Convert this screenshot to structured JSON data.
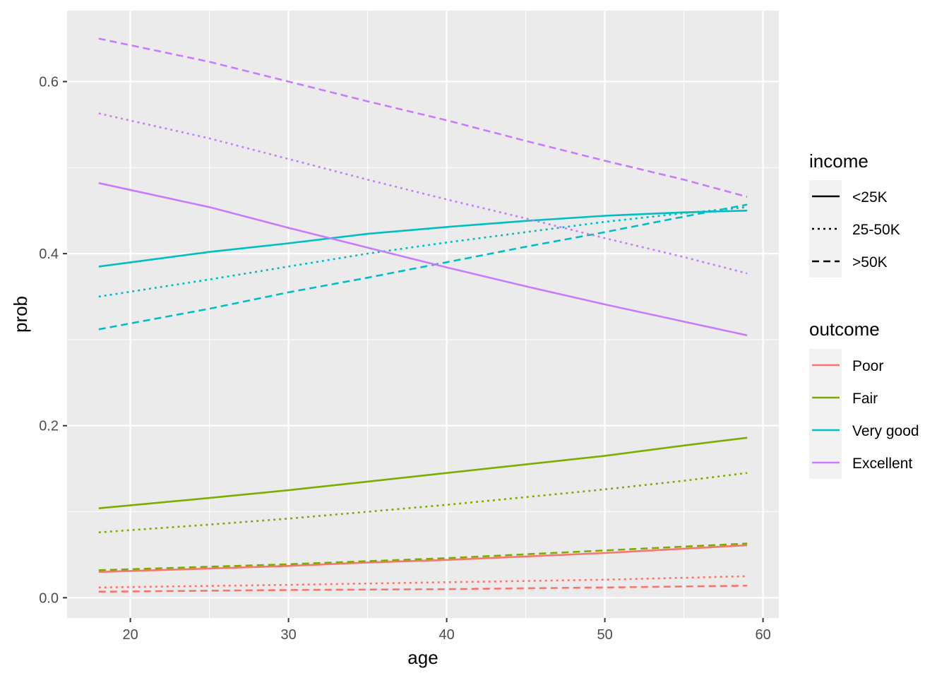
{
  "chart_data": {
    "type": "line",
    "xlabel": "age",
    "ylabel": "prob",
    "xlim": [
      16,
      61
    ],
    "ylim": [
      -0.0235,
      0.6825
    ],
    "x_ticks": [
      20,
      30,
      40,
      50,
      60
    ],
    "y_ticks": [
      0.0,
      0.2,
      0.4,
      0.6
    ],
    "x_tick_labels": [
      "20",
      "30",
      "40",
      "50",
      "60"
    ],
    "y_tick_labels": [
      "0.0",
      "0.2",
      "0.4",
      "0.6"
    ],
    "grid": true,
    "legend_placement": "right",
    "legends": {
      "income": {
        "title": "income",
        "entries": [
          {
            "label": "<25K",
            "linetype": "solid"
          },
          {
            "label": "25-50K",
            "linetype": "dotted"
          },
          {
            "label": ">50K",
            "linetype": "dashed"
          }
        ]
      },
      "outcome": {
        "title": "outcome",
        "entries": [
          {
            "label": "Poor",
            "color": "#F8766D"
          },
          {
            "label": "Fair",
            "color": "#7CAE00"
          },
          {
            "label": "Very good",
            "color": "#00BFC4"
          },
          {
            "label": "Excellent",
            "color": "#C77CFF"
          }
        ]
      }
    },
    "series": [
      {
        "outcome": "Poor",
        "income": "<25K",
        "color": "#F8766D",
        "linetype": "solid",
        "x": [
          18,
          25,
          30,
          35,
          40,
          45,
          50,
          55,
          59
        ],
        "y": [
          0.03,
          0.034,
          0.037,
          0.041,
          0.044,
          0.048,
          0.052,
          0.057,
          0.061
        ]
      },
      {
        "outcome": "Poor",
        "income": "25-50K",
        "color": "#F8766D",
        "linetype": "dotted",
        "x": [
          18,
          30,
          40,
          50,
          59
        ],
        "y": [
          0.012,
          0.015,
          0.018,
          0.021,
          0.025
        ]
      },
      {
        "outcome": "Poor",
        "income": ">50K",
        "color": "#F8766D",
        "linetype": "dashed",
        "x": [
          18,
          30,
          40,
          50,
          59
        ],
        "y": [
          0.007,
          0.009,
          0.01,
          0.012,
          0.014
        ]
      },
      {
        "outcome": "Fair",
        "income": "<25K",
        "color": "#7CAE00",
        "linetype": "solid",
        "x": [
          18,
          25,
          30,
          35,
          40,
          45,
          50,
          55,
          59
        ],
        "y": [
          0.104,
          0.116,
          0.125,
          0.135,
          0.145,
          0.155,
          0.165,
          0.177,
          0.186
        ]
      },
      {
        "outcome": "Fair",
        "income": "25-50K",
        "color": "#7CAE00",
        "linetype": "dotted",
        "x": [
          18,
          25,
          30,
          35,
          40,
          45,
          50,
          55,
          59
        ],
        "y": [
          0.076,
          0.085,
          0.092,
          0.1,
          0.108,
          0.117,
          0.126,
          0.136,
          0.145
        ]
      },
      {
        "outcome": "Fair",
        "income": ">50K",
        "color": "#7CAE00",
        "linetype": "dashed",
        "x": [
          18,
          30,
          40,
          50,
          59
        ],
        "y": [
          0.032,
          0.039,
          0.046,
          0.055,
          0.063
        ]
      },
      {
        "outcome": "Very good",
        "income": "<25K",
        "color": "#00BFC4",
        "linetype": "solid",
        "x": [
          18,
          25,
          30,
          35,
          40,
          45,
          50,
          55,
          59
        ],
        "y": [
          0.385,
          0.402,
          0.412,
          0.423,
          0.431,
          0.438,
          0.444,
          0.448,
          0.45
        ]
      },
      {
        "outcome": "Very good",
        "income": "25-50K",
        "color": "#00BFC4",
        "linetype": "dotted",
        "x": [
          18,
          25,
          30,
          35,
          40,
          45,
          50,
          55,
          59
        ],
        "y": [
          0.35,
          0.37,
          0.385,
          0.4,
          0.413,
          0.425,
          0.437,
          0.447,
          0.454
        ]
      },
      {
        "outcome": "Very good",
        "income": ">50K",
        "color": "#00BFC4",
        "linetype": "dashed",
        "x": [
          18,
          25,
          30,
          35,
          40,
          45,
          50,
          55,
          59
        ],
        "y": [
          0.312,
          0.336,
          0.355,
          0.372,
          0.39,
          0.408,
          0.425,
          0.443,
          0.457
        ]
      },
      {
        "outcome": "Excellent",
        "income": "<25K",
        "color": "#C77CFF",
        "linetype": "solid",
        "x": [
          18,
          25,
          30,
          35,
          40,
          45,
          50,
          55,
          59
        ],
        "y": [
          0.482,
          0.454,
          0.43,
          0.407,
          0.384,
          0.362,
          0.341,
          0.321,
          0.305
        ]
      },
      {
        "outcome": "Excellent",
        "income": "25-50K",
        "color": "#C77CFF",
        "linetype": "dotted",
        "x": [
          18,
          25,
          30,
          35,
          40,
          45,
          50,
          55,
          59
        ],
        "y": [
          0.563,
          0.534,
          0.51,
          0.486,
          0.463,
          0.441,
          0.418,
          0.396,
          0.377
        ]
      },
      {
        "outcome": "Excellent",
        "income": ">50K",
        "color": "#C77CFF",
        "linetype": "dashed",
        "x": [
          18,
          25,
          30,
          35,
          40,
          45,
          50,
          55,
          59
        ],
        "y": [
          0.65,
          0.623,
          0.6,
          0.577,
          0.555,
          0.531,
          0.508,
          0.486,
          0.466
        ]
      }
    ]
  }
}
